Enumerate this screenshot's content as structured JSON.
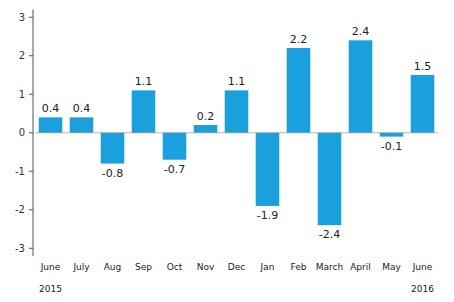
{
  "chart_data": {
    "type": "bar",
    "categories": [
      "June",
      "July",
      "Aug",
      "Sep",
      "Oct",
      "Nov",
      "Dec",
      "Jan",
      "Feb",
      "March",
      "April",
      "May",
      "June"
    ],
    "values": [
      0.4,
      0.4,
      -0.8,
      1.1,
      -0.7,
      0.2,
      1.1,
      -1.9,
      2.2,
      -2.4,
      2.4,
      -0.1,
      1.5
    ],
    "color": "#1aa0dc",
    "ylim": [
      -3.2,
      3.2
    ],
    "yticks": [
      -3,
      -2,
      -1,
      0,
      1,
      2,
      3
    ],
    "grid": false,
    "data_labels": true,
    "annotations": [
      {
        "text": "2015",
        "at": 0
      },
      {
        "text": "2016",
        "at": 12
      }
    ]
  }
}
